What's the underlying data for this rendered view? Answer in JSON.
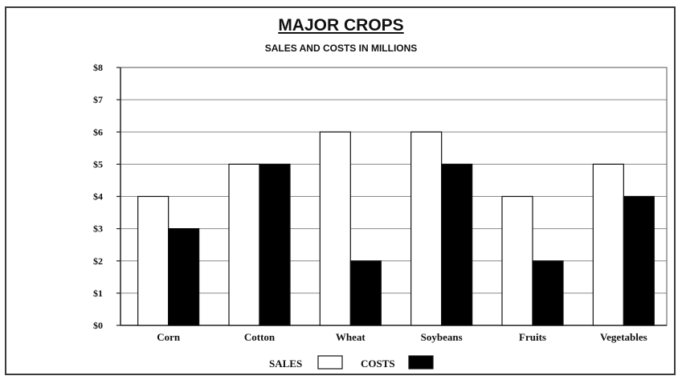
{
  "chart_data": {
    "type": "bar",
    "title": "MAJOR CROPS",
    "subtitle": "SALES AND COSTS IN MILLIONS",
    "categories": [
      "Corn",
      "Cotton",
      "Wheat",
      "Soybeans",
      "Fruits",
      "Vegetables"
    ],
    "series": [
      {
        "name": "SALES",
        "values": [
          4,
          5,
          6,
          6,
          4,
          5
        ],
        "color": "#ffffff"
      },
      {
        "name": "COSTS",
        "values": [
          3,
          5,
          2,
          5,
          2,
          4
        ],
        "color": "#000000"
      }
    ],
    "ylim": [
      0,
      8
    ],
    "yticks": [
      "$0",
      "$1",
      "$2",
      "$3",
      "$4",
      "$5",
      "$6",
      "$7",
      "$8"
    ],
    "grid": true,
    "legend_position": "bottom"
  }
}
